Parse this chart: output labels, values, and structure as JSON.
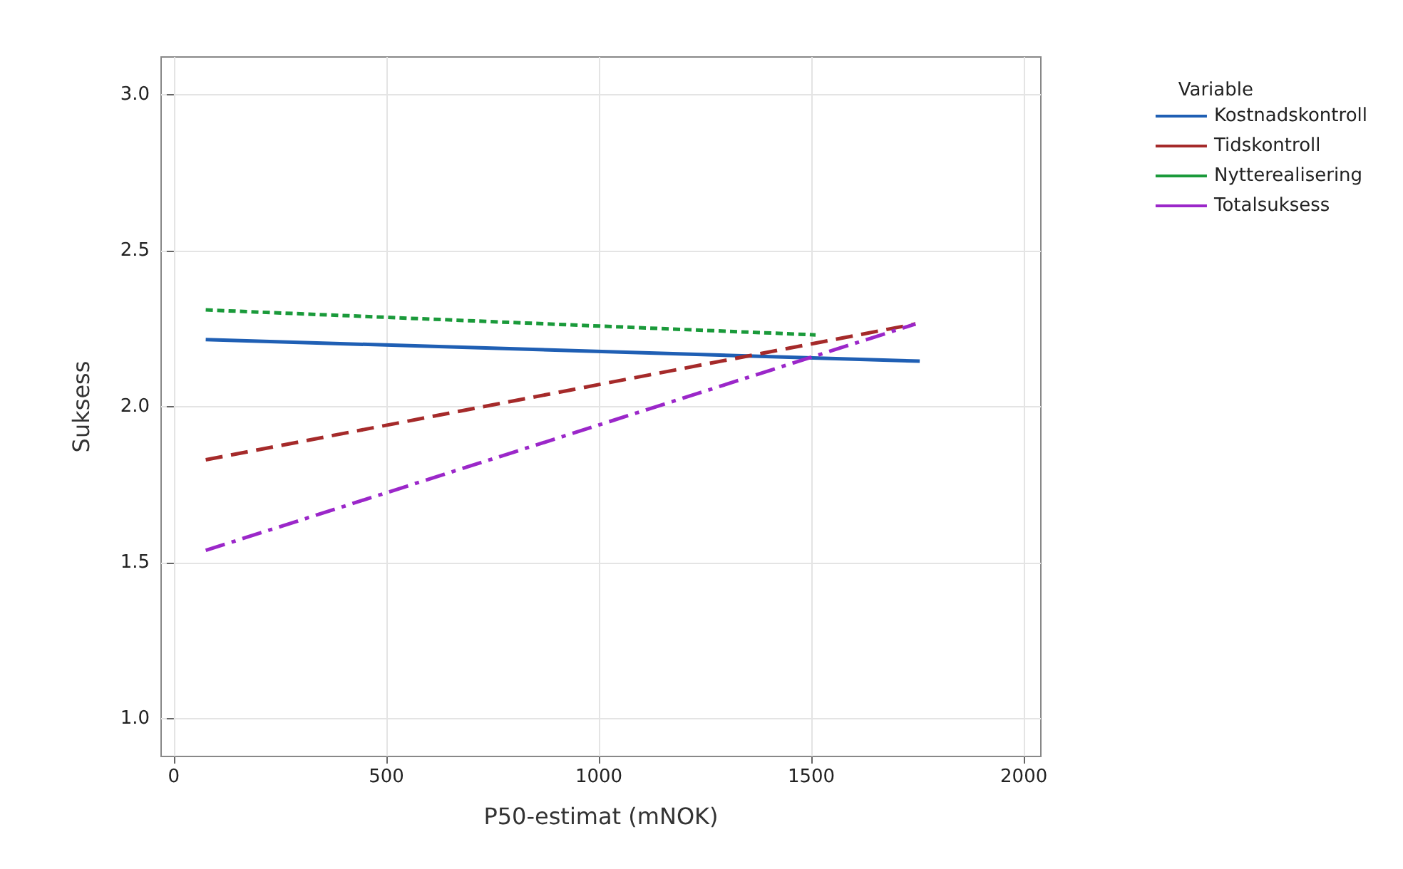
{
  "chart_data": {
    "type": "line",
    "xlabel": "P50-estimat (mNOK)",
    "ylabel": "Suksess",
    "legend_title": "Variable",
    "xlim": [
      -30,
      2040
    ],
    "xticks": [
      0,
      500,
      1000,
      1500,
      2000
    ],
    "ylim": [
      0.88,
      3.12
    ],
    "yticks": [
      {
        "value": 1,
        "label": "1.0"
      },
      {
        "value": 1.5,
        "label": "1.5"
      },
      {
        "value": 2,
        "label": "2.0"
      },
      {
        "value": 2.5,
        "label": "2.5"
      },
      {
        "value": 3,
        "label": "3.0"
      }
    ],
    "grid": true,
    "legend": "right",
    "marker": "none",
    "series": [
      {
        "name": "Kostnadskontroll",
        "color": "#1f5fb4",
        "line_style": "solid",
        "x": [
          75,
          1755
        ],
        "values": [
          2.215,
          2.146
        ]
      },
      {
        "name": "Tidskontroll",
        "color": "#a52a2a",
        "line_style": "dashed",
        "x": [
          75,
          1745
        ],
        "values": [
          1.83,
          2.265
        ]
      },
      {
        "name": "Nytterealisering",
        "color": "#1a9a3a",
        "line_style": "dotted",
        "x": [
          75,
          1510
        ],
        "values": [
          2.31,
          2.23
        ]
      },
      {
        "name": "Totalsuksess",
        "color": "#9b27c9",
        "line_style": "dashdot",
        "x": [
          75,
          1745
        ],
        "values": [
          1.54,
          2.265
        ]
      }
    ]
  }
}
